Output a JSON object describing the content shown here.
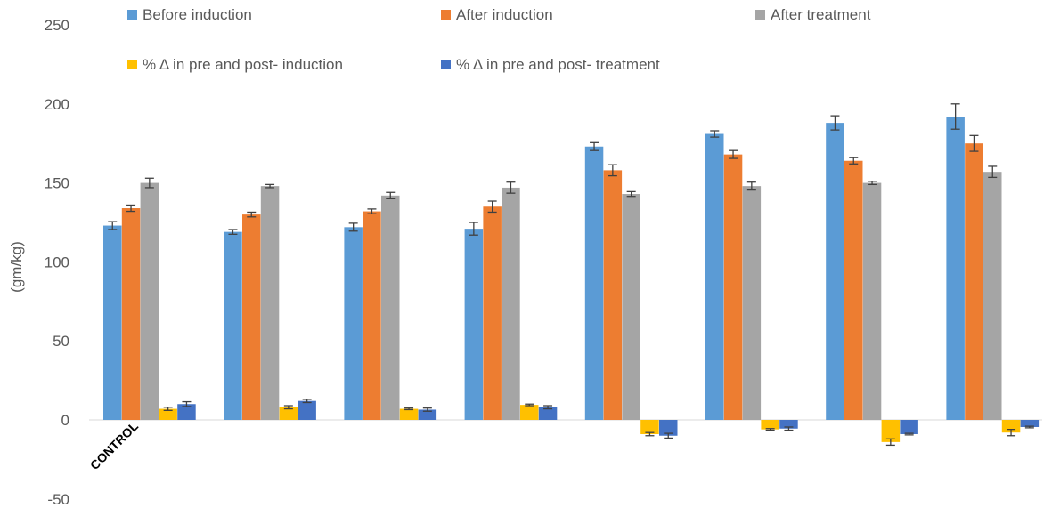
{
  "chart_data": {
    "type": "bar",
    "ylabel": "(gm/kg)",
    "ylim": [
      -50,
      250
    ],
    "yticks": [
      -50,
      0,
      50,
      100,
      150,
      200,
      250
    ],
    "grid": false,
    "legend_position": "top",
    "categories": [
      "CONTROL",
      "",
      "",
      "",
      "",
      "",
      "",
      ""
    ],
    "series": [
      {
        "name": "Before induction",
        "color": "#5B9BD5",
        "values": [
          123,
          119,
          122,
          121,
          173,
          181,
          188,
          192
        ],
        "errors": [
          2.5,
          1.5,
          2.5,
          4,
          2.5,
          2,
          4.5,
          8
        ]
      },
      {
        "name": "After induction",
        "color": "#ED7D31",
        "values": [
          134,
          130,
          132,
          135,
          158,
          168,
          164,
          175
        ],
        "errors": [
          2,
          1.5,
          1.5,
          3.5,
          3.5,
          2.5,
          2,
          5
        ]
      },
      {
        "name": "After treatment",
        "color": "#A5A5A5",
        "values": [
          150,
          148,
          142,
          147,
          143,
          148,
          150,
          157
        ],
        "errors": [
          3,
          1,
          2,
          3.5,
          1.5,
          2.5,
          1,
          3.5
        ]
      },
      {
        "name": "% Δ in pre and post- induction",
        "color": "#FFC000",
        "values": [
          7,
          8,
          7,
          9.5,
          -9,
          -6,
          -14,
          -8
        ],
        "errors": [
          1,
          1,
          0.5,
          0.5,
          1,
          0.5,
          2,
          2
        ]
      },
      {
        "name": "% Δ in pre and post- treatment",
        "color": "#4472C4",
        "values": [
          10,
          12,
          6.5,
          8,
          -10,
          -5.5,
          -9,
          -4.5
        ],
        "errors": [
          1.5,
          1,
          1,
          1,
          1.5,
          1,
          0.5,
          0.5
        ]
      }
    ]
  }
}
